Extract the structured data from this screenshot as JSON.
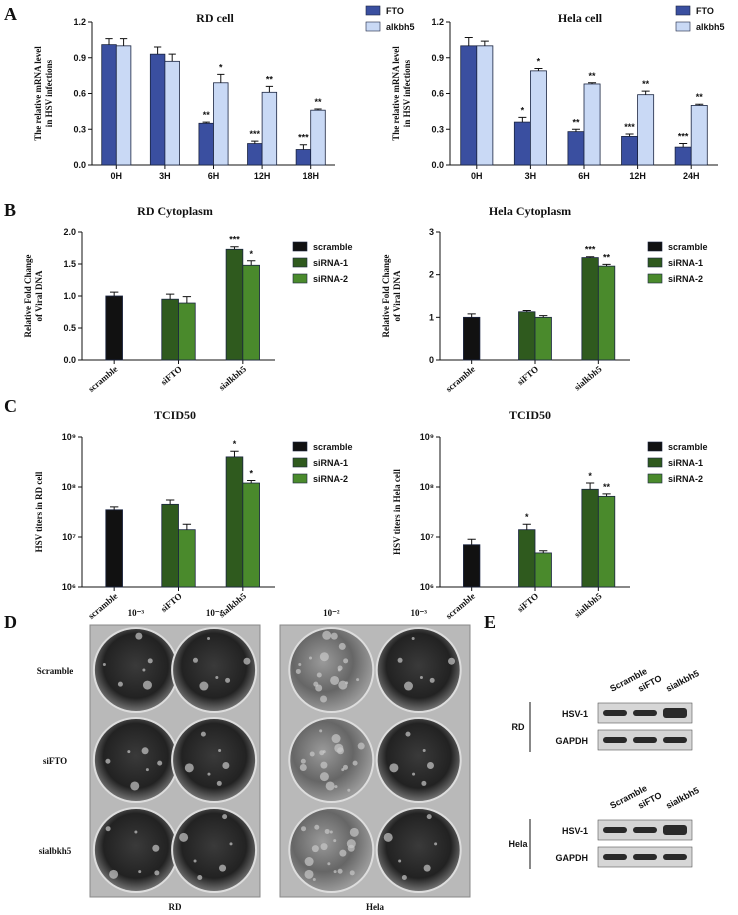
{
  "panel_labels": [
    "A",
    "B",
    "C",
    "D",
    "E"
  ],
  "chart_data": [
    {
      "type": "bar",
      "title": "RD cell",
      "ylabel": [
        "The relative mRNA level",
        "in HSV infections"
      ],
      "categories": [
        "0H",
        "3H",
        "6H",
        "12H",
        "18H"
      ],
      "series": [
        {
          "name": "FTO",
          "color": "#3a4fa0",
          "values": [
            1.01,
            0.93,
            0.35,
            0.18,
            0.13
          ],
          "errors": [
            0.05,
            0.06,
            0.01,
            0.02,
            0.04
          ],
          "significance": [
            null,
            null,
            "**",
            "***",
            "***"
          ]
        },
        {
          "name": "alkbh5",
          "color": "#c9d9f5",
          "values": [
            1.0,
            0.87,
            0.69,
            0.61,
            0.46
          ],
          "errors": [
            0.06,
            0.06,
            0.07,
            0.05,
            0.01
          ],
          "significance": [
            null,
            null,
            "*",
            "**",
            "**"
          ]
        }
      ],
      "ylim": [
        0,
        1.2
      ],
      "yticks": [
        {
          "value": 0,
          "label": "0.0"
        },
        0.3,
        0.6,
        0.9,
        1.2
      ]
    },
    {
      "type": "bar",
      "title": "Hela cell",
      "ylabel": [
        "The relative mRNA level",
        "in HSV infections"
      ],
      "categories": [
        "0H",
        "3H",
        "6H",
        "12H",
        "24H"
      ],
      "series": [
        {
          "name": "FTO",
          "color": "#3a4fa0",
          "values": [
            1.0,
            0.36,
            0.28,
            0.24,
            0.15
          ],
          "errors": [
            0.07,
            0.04,
            0.02,
            0.02,
            0.03
          ],
          "significance": [
            null,
            "*",
            "**",
            "***",
            "***"
          ]
        },
        {
          "name": "alkbh5",
          "color": "#c9d9f5",
          "values": [
            1.0,
            0.79,
            0.68,
            0.59,
            0.5
          ],
          "errors": [
            0.04,
            0.02,
            0.01,
            0.03,
            0.01
          ],
          "significance": [
            null,
            "*",
            "**",
            "**",
            "**"
          ]
        }
      ],
      "ylim": [
        0,
        1.2
      ],
      "yticks": [
        {
          "value": 0,
          "label": "0.0"
        },
        0.3,
        0.6,
        0.9,
        1.2
      ]
    },
    {
      "type": "bar",
      "title": "RD Cytoplasm",
      "ylabel": [
        "Relative Fold Change",
        "of Viral DNA"
      ],
      "categories": [
        "scramble",
        "siFTO",
        "sialkbh5"
      ],
      "series": [
        {
          "name": "scramble",
          "color": "#111111",
          "values": [
            1.0,
            null,
            null
          ],
          "errors": [
            0.06,
            null,
            null
          ],
          "significance": [
            null,
            null,
            null
          ]
        },
        {
          "name": "siRNA-1",
          "color": "#2f5a1e",
          "values": [
            null,
            0.95,
            1.73
          ],
          "errors": [
            null,
            0.08,
            0.04
          ],
          "significance": [
            null,
            null,
            "***"
          ]
        },
        {
          "name": "siRNA-2",
          "color": "#4a8a2c",
          "values": [
            null,
            0.89,
            1.48
          ],
          "errors": [
            null,
            0.1,
            0.07
          ],
          "significance": [
            null,
            null,
            "*"
          ]
        }
      ],
      "ylim": [
        0,
        2.0
      ],
      "yticks": [
        {
          "value": 0,
          "label": "0.0"
        },
        0.5,
        {
          "value": 1,
          "label": "1.0"
        },
        1.5,
        {
          "value": 2,
          "label": "2.0"
        }
      ]
    },
    {
      "type": "bar",
      "title": "Hela Cytoplasm",
      "ylabel": [
        "Relative Fold Change",
        "of Viral DNA"
      ],
      "categories": [
        "scramble",
        "siFTO",
        "sialkbh5"
      ],
      "series": [
        {
          "name": "scramble",
          "color": "#111111",
          "values": [
            1.0,
            null,
            null
          ],
          "errors": [
            0.08,
            null,
            null
          ],
          "significance": [
            null,
            null,
            null
          ]
        },
        {
          "name": "siRNA-1",
          "color": "#2f5a1e",
          "values": [
            null,
            1.13,
            2.4
          ],
          "errors": [
            null,
            0.03,
            0.02
          ],
          "significance": [
            null,
            null,
            "***"
          ]
        },
        {
          "name": "siRNA-2",
          "color": "#4a8a2c",
          "values": [
            null,
            1.0,
            2.2
          ],
          "errors": [
            null,
            0.04,
            0.04
          ],
          "significance": [
            null,
            null,
            "**"
          ]
        }
      ],
      "ylim": [
        0,
        3
      ],
      "yticks": [
        0,
        1,
        2,
        3
      ]
    },
    {
      "type": "bar",
      "title": "TCID50",
      "ylabel": [
        "HSV titers in RD cell"
      ],
      "log_scale": true,
      "categories": [
        "scramble",
        "siFTO",
        "sialkbh5"
      ],
      "series": [
        {
          "name": "scramble",
          "color": "#111111",
          "values": [
            35000000,
            null,
            null
          ],
          "errors": [
            5000000,
            null,
            null
          ],
          "significance": [
            null,
            null,
            null
          ]
        },
        {
          "name": "siRNA-1",
          "color": "#2f5a1e",
          "values": [
            null,
            45000000,
            400000000
          ],
          "errors": [
            null,
            10000000,
            120000000
          ],
          "significance": [
            null,
            null,
            "*"
          ]
        },
        {
          "name": "siRNA-2",
          "color": "#4a8a2c",
          "values": [
            null,
            14000000,
            120000000
          ],
          "errors": [
            null,
            4000000,
            15000000
          ],
          "significance": [
            null,
            null,
            "*"
          ]
        }
      ],
      "ylim": [
        1000000,
        1000000000
      ],
      "yticks": [
        {
          "value": 1000000,
          "label": "10⁶"
        },
        {
          "value": 10000000,
          "label": "10⁷"
        },
        {
          "value": 100000000,
          "label": "10⁸"
        },
        {
          "value": 1000000000,
          "label": "10⁹"
        }
      ]
    },
    {
      "type": "bar",
      "title": "TCID50",
      "ylabel": [
        "HSV titers in Hela cell"
      ],
      "log_scale": true,
      "categories": [
        "scramble",
        "siFTO",
        "sialkbh5"
      ],
      "series": [
        {
          "name": "scramble",
          "color": "#111111",
          "values": [
            7000000,
            null,
            null
          ],
          "errors": [
            2000000,
            null,
            null
          ],
          "significance": [
            null,
            null,
            null
          ]
        },
        {
          "name": "siRNA-1",
          "color": "#2f5a1e",
          "values": [
            null,
            14000000,
            90000000
          ],
          "errors": [
            null,
            4000000,
            30000000
          ],
          "significance": [
            null,
            "*",
            "*"
          ]
        },
        {
          "name": "siRNA-2",
          "color": "#4a8a2c",
          "values": [
            null,
            4800000,
            65000000
          ],
          "errors": [
            null,
            500000,
            8000000
          ],
          "significance": [
            null,
            null,
            "**"
          ]
        }
      ],
      "ylim": [
        1000000,
        1000000000
      ],
      "yticks": [
        {
          "value": 1000000,
          "label": "10⁶"
        },
        {
          "value": 10000000,
          "label": "10⁷"
        },
        {
          "value": 100000000,
          "label": "10⁸"
        },
        {
          "value": 1000000000,
          "label": "10⁹"
        }
      ]
    }
  ],
  "plaque_assay": {
    "rows": [
      "Scramble",
      "siFTO",
      "sialbkh5"
    ],
    "panels": [
      {
        "label": "RD",
        "dilutions": [
          "10⁻³",
          "10⁻⁴"
        ]
      },
      {
        "label": "Hela",
        "dilutions": [
          "10⁻²",
          "10⁻³"
        ]
      }
    ]
  },
  "western_blot": {
    "lanes": [
      "Scramble",
      "siFTO",
      "sialkbh5"
    ],
    "cells": [
      "RD",
      "Hela"
    ],
    "bands": [
      "HSV-1",
      "GAPDH"
    ]
  }
}
